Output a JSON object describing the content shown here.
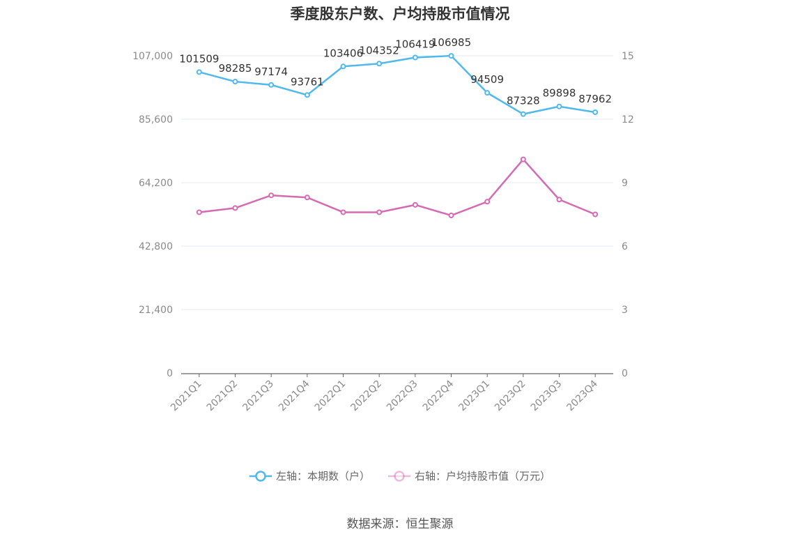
{
  "chart_data": {
    "type": "line",
    "title": "季度股东户数、户均持股市值情况",
    "categories": [
      "2021Q1",
      "2021Q2",
      "2021Q3",
      "2021Q4",
      "2022Q1",
      "2022Q2",
      "2022Q3",
      "2022Q4",
      "2023Q1",
      "2023Q2",
      "2023Q3",
      "2023Q4"
    ],
    "left_axis": {
      "ylim": [
        0,
        107000
      ],
      "ticks": [
        "0",
        "21,400",
        "42,800",
        "64,200",
        "85,600",
        "107,000"
      ]
    },
    "right_axis": {
      "ylim": [
        0,
        15
      ],
      "ticks": [
        "0",
        "3",
        "6",
        "9",
        "12",
        "15"
      ]
    },
    "grid": true,
    "legend_position": "bottom",
    "series": [
      {
        "name": "左轴：本期数（户）",
        "axis": "left",
        "color": "#4fb9ec",
        "values": [
          101509,
          98285,
          97174,
          93761,
          103406,
          104352,
          106419,
          106985,
          94509,
          87328,
          89898,
          87962
        ],
        "labels": [
          "101509",
          "98285",
          "97174",
          "93761",
          "103406",
          "104352",
          "106419",
          "106985",
          "94509",
          "87328",
          "89898",
          "87962"
        ]
      },
      {
        "name": "右轴：户均持股市值（万元）",
        "axis": "right",
        "color": "#d56ab3",
        "values": [
          7.6,
          7.8,
          8.4,
          8.3,
          7.6,
          7.6,
          7.95,
          7.45,
          8.1,
          10.1,
          8.2,
          7.5
        ]
      }
    ]
  },
  "source": "数据来源：恒生聚源"
}
